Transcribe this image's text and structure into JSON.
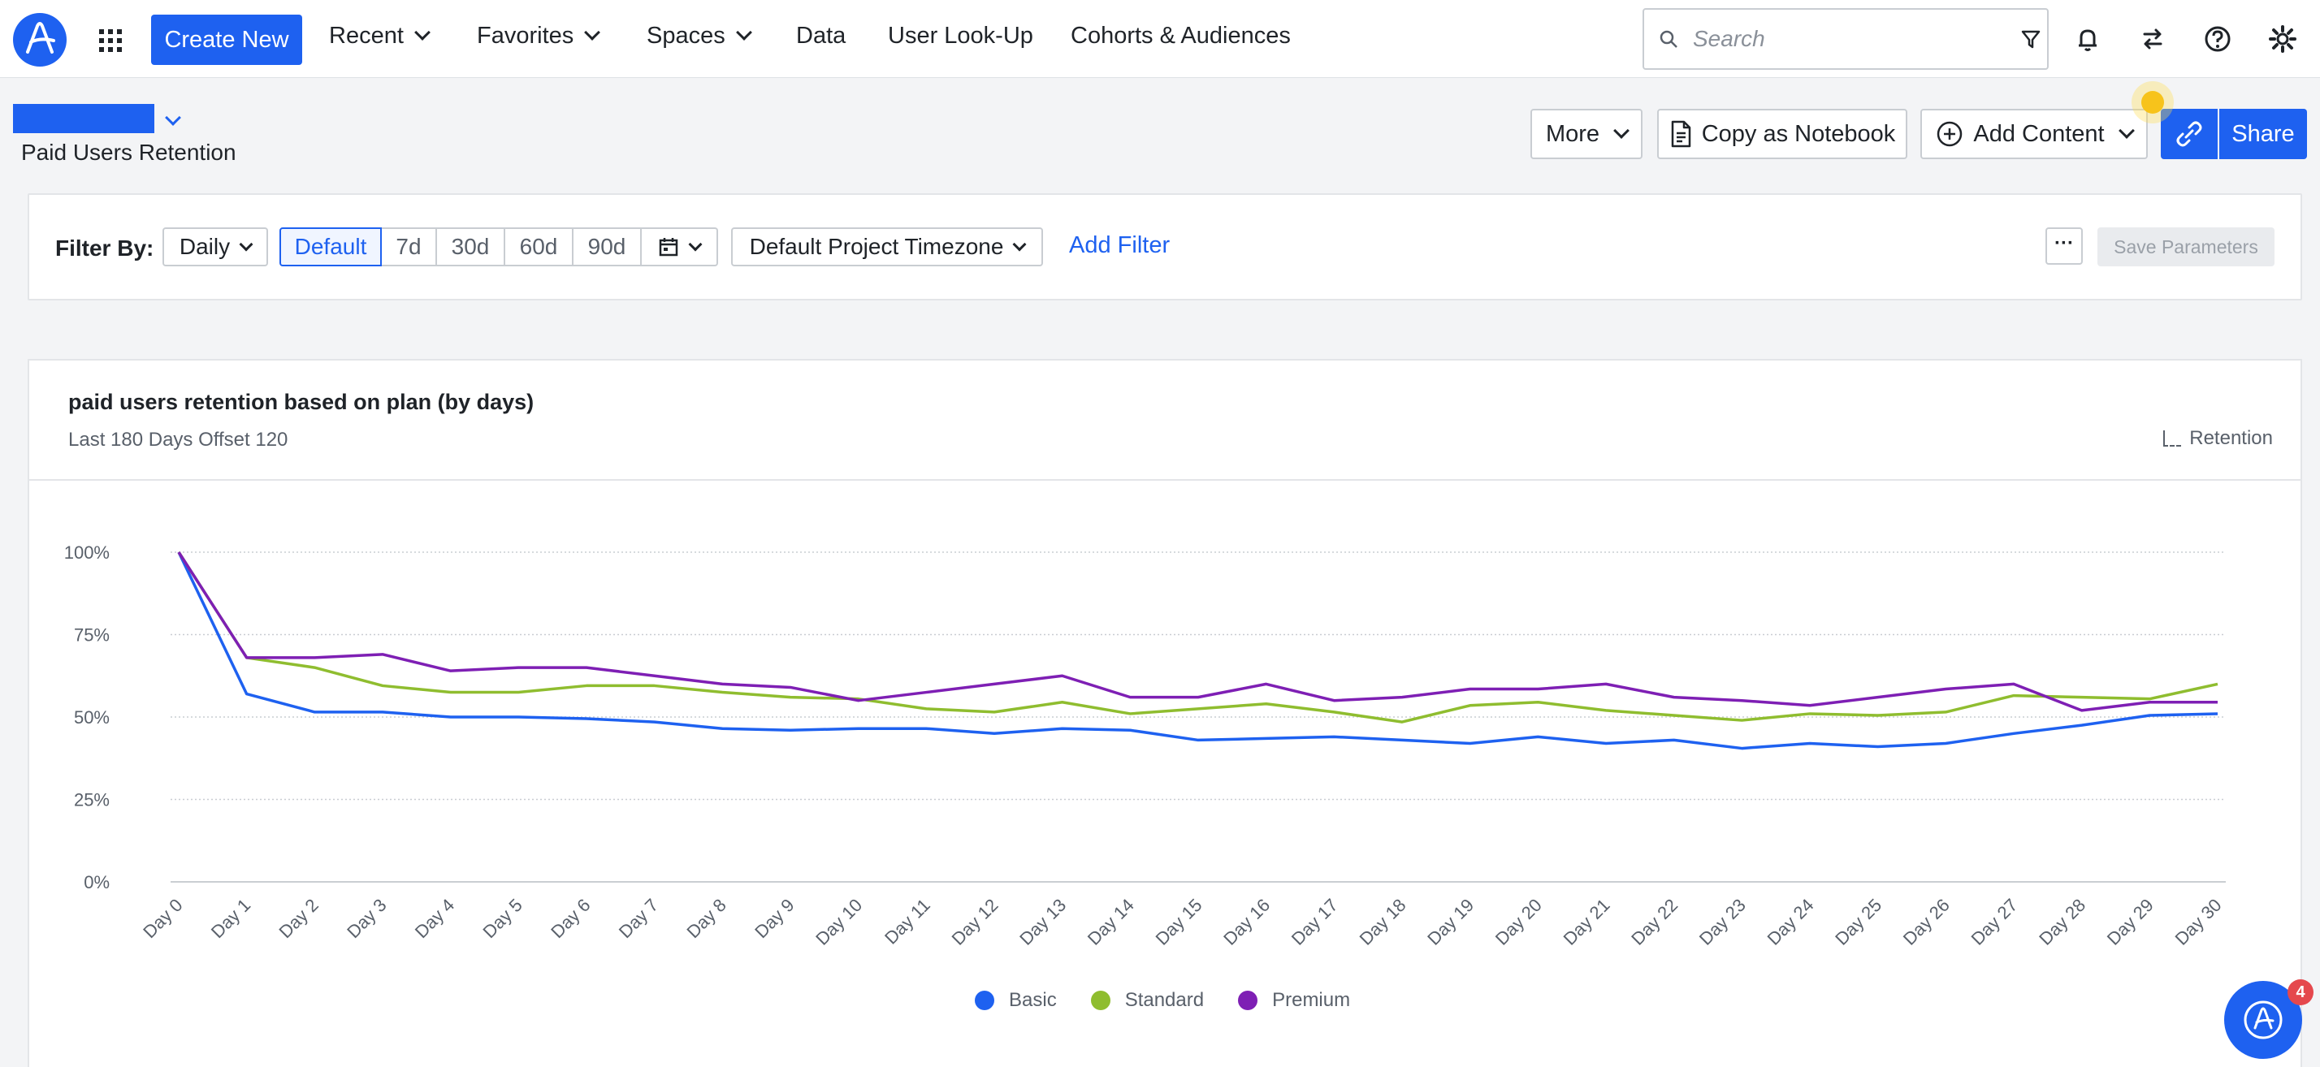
{
  "nav": {
    "create_label": "Create New",
    "items": [
      {
        "label": "Recent",
        "has_dropdown": true
      },
      {
        "label": "Favorites",
        "has_dropdown": true
      },
      {
        "label": "Spaces",
        "has_dropdown": true
      },
      {
        "label": "Data",
        "has_dropdown": false
      },
      {
        "label": "User Look-Up",
        "has_dropdown": false
      },
      {
        "label": "Cohorts & Audiences",
        "has_dropdown": false
      }
    ],
    "search_placeholder": "Search",
    "icons": [
      "apps-grid-icon",
      "search-icon",
      "filter-icon",
      "bell-icon",
      "swap-icon",
      "help-icon",
      "gear-icon"
    ],
    "accent_color": "#1e61f0"
  },
  "header": {
    "title": "Paid Users Retention",
    "more_label": "More",
    "copy_notebook_label": "Copy as Notebook",
    "add_content_label": "Add Content",
    "share_label": "Share"
  },
  "filters": {
    "label": "Filter By:",
    "interval": "Daily",
    "ranges": [
      "Default",
      "7d",
      "30d",
      "60d",
      "90d"
    ],
    "selected_range": "Default",
    "timezone": "Default Project Timezone",
    "add_filter_label": "Add Filter",
    "more_label": "···",
    "save_label": "Save Parameters"
  },
  "card": {
    "title": "paid users retention based on plan (by days)",
    "subtitle": "Last 180 Days Offset 120",
    "chart_type_label": "Retention"
  },
  "fab_badge": "4",
  "chart_data": {
    "type": "line",
    "title": "paid users retention based on plan (by days)",
    "x": [
      "Day 0",
      "Day 1",
      "Day 2",
      "Day 3",
      "Day 4",
      "Day 5",
      "Day 6",
      "Day 7",
      "Day 8",
      "Day 9",
      "Day 10",
      "Day 11",
      "Day 12",
      "Day 13",
      "Day 14",
      "Day 15",
      "Day 16",
      "Day 17",
      "Day 18",
      "Day 19",
      "Day 20",
      "Day 21",
      "Day 22",
      "Day 23",
      "Day 24",
      "Day 25",
      "Day 26",
      "Day 27",
      "Day 28",
      "Day 29",
      "Day 30"
    ],
    "y_ticks": [
      "0%",
      "25%",
      "50%",
      "75%",
      "100%"
    ],
    "ylim": [
      0,
      100
    ],
    "grid": true,
    "legend_position": "bottom-center",
    "series": [
      {
        "name": "Basic",
        "color": "#1e61f0",
        "values": [
          100,
          57,
          51.5,
          51.5,
          50,
          50,
          49.5,
          48.5,
          46.5,
          46,
          46.5,
          46.5,
          45,
          46.5,
          46,
          43,
          43.5,
          44,
          43,
          42,
          44,
          42,
          43,
          40.5,
          42,
          41,
          42,
          45,
          47.5,
          50.5,
          51
        ]
      },
      {
        "name": "Standard",
        "color": "#8fbd2f",
        "values": [
          100,
          68,
          65,
          59.5,
          57.5,
          57.5,
          59.5,
          59.5,
          57.5,
          56,
          55.5,
          52.5,
          51.5,
          54.5,
          51,
          52.5,
          54,
          51.5,
          48.5,
          53.5,
          54.5,
          52,
          50.5,
          49,
          51,
          50.5,
          51.5,
          56.5,
          56,
          55.5,
          60
        ]
      },
      {
        "name": "Premium",
        "color": "#7e1fb4",
        "values": [
          100,
          68,
          68,
          69,
          64,
          65,
          65,
          62.5,
          60,
          59,
          55,
          57.5,
          60,
          62.5,
          56,
          56,
          60,
          55,
          56,
          58.5,
          58.5,
          60,
          56,
          55,
          53.5,
          56,
          58.5,
          60,
          52,
          54.5,
          54.5
        ]
      }
    ]
  }
}
